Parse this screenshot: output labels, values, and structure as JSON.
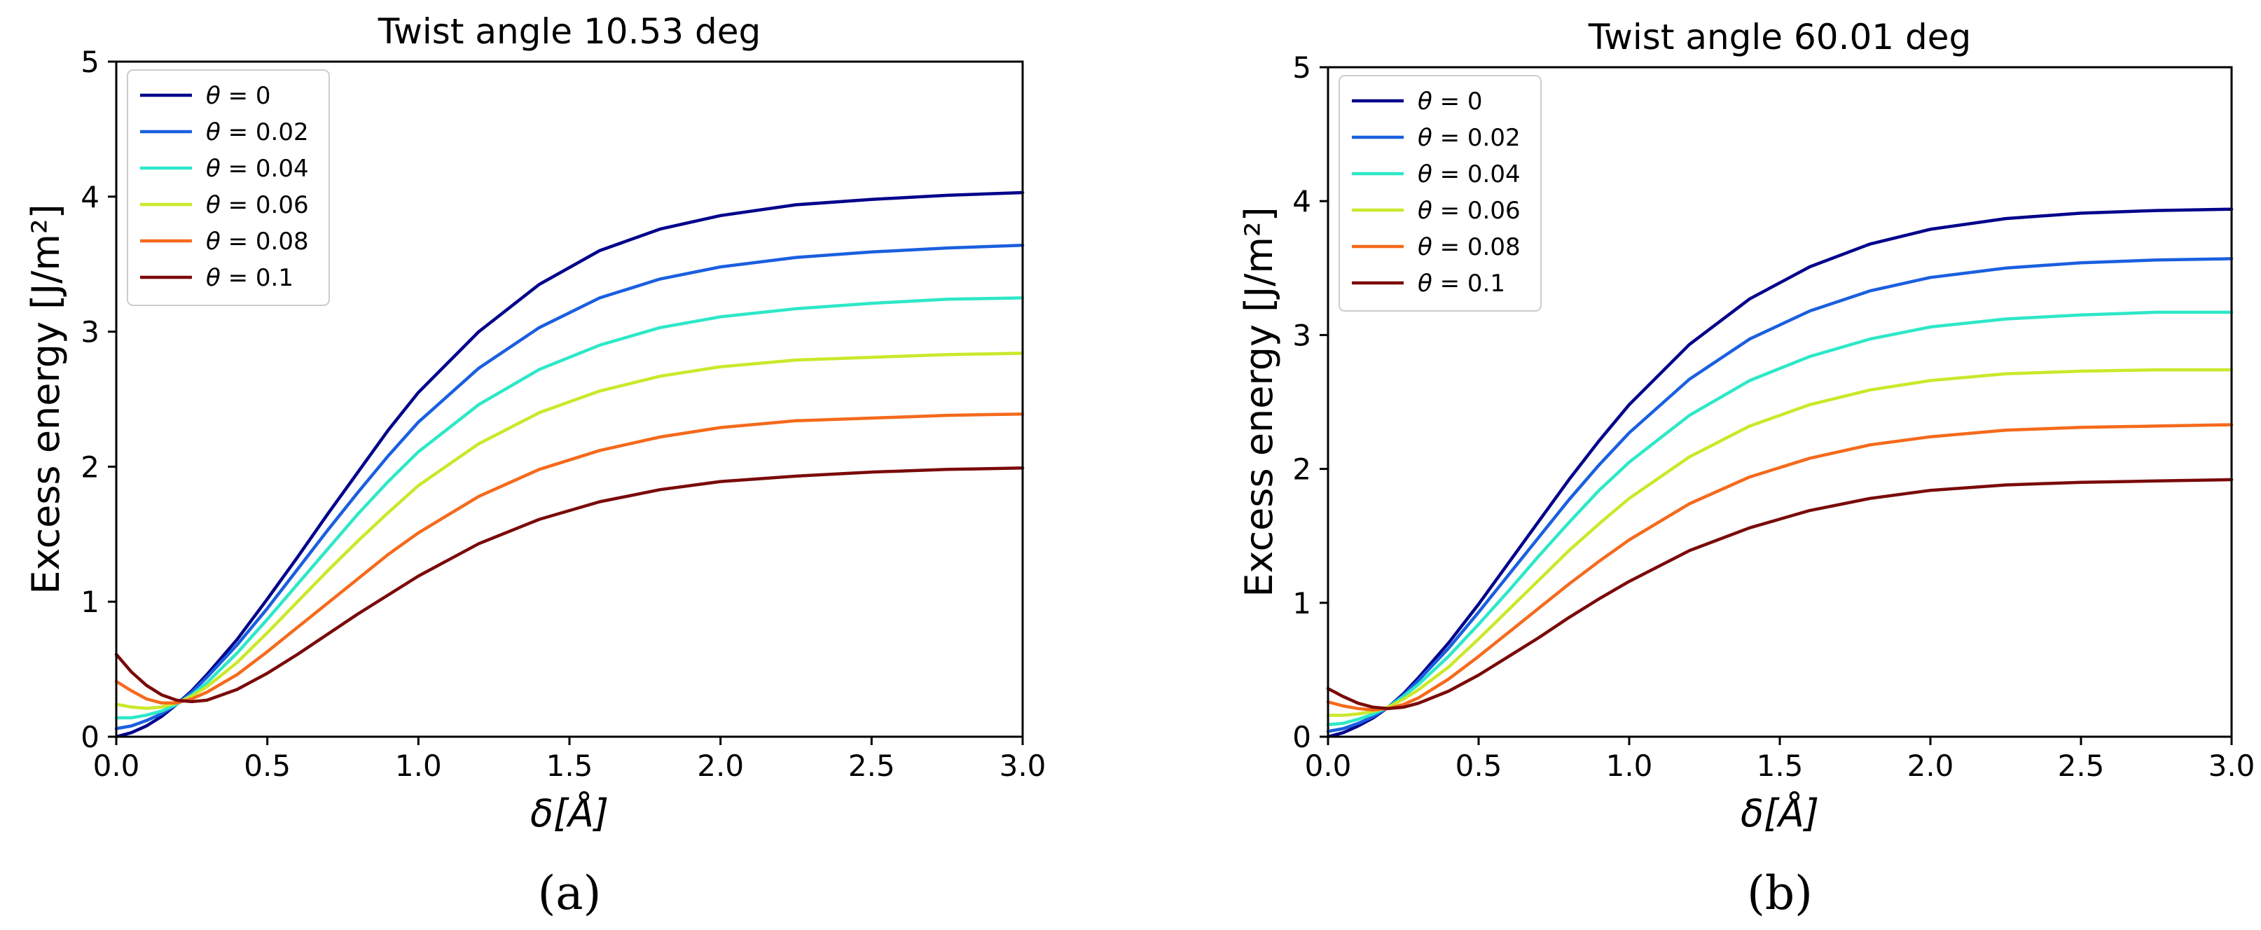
{
  "chart_data": [
    {
      "type": "line",
      "title": "Twist angle 10.53 deg",
      "xlabel": "δ[Å]",
      "ylabel": "Excess energy [J/m²]",
      "xlim": [
        0,
        3
      ],
      "ylim": [
        0,
        5
      ],
      "xticks": [
        "0.0",
        "0.5",
        "1.0",
        "1.5",
        "2.0",
        "2.5",
        "3.0"
      ],
      "yticks": [
        "0",
        "1",
        "2",
        "3",
        "4",
        "5"
      ],
      "legend_position": "top-left",
      "caption": "(a)",
      "x": [
        0,
        0.05,
        0.1,
        0.15,
        0.2,
        0.25,
        0.3,
        0.4,
        0.5,
        0.6,
        0.7,
        0.8,
        0.9,
        1.0,
        1.2,
        1.4,
        1.6,
        1.8,
        2.0,
        2.25,
        2.5,
        2.75,
        3.0
      ],
      "series": [
        {
          "name": "θ = 0",
          "color": "#00008b",
          "values": [
            0.0,
            0.03,
            0.08,
            0.15,
            0.24,
            0.34,
            0.46,
            0.72,
            1.02,
            1.33,
            1.65,
            1.96,
            2.27,
            2.55,
            3.0,
            3.35,
            3.6,
            3.76,
            3.86,
            3.94,
            3.98,
            4.01,
            4.03
          ]
        },
        {
          "name": "θ = 0.02",
          "color": "#1a5fe0",
          "values": [
            0.06,
            0.08,
            0.12,
            0.17,
            0.24,
            0.33,
            0.44,
            0.68,
            0.95,
            1.24,
            1.53,
            1.81,
            2.08,
            2.33,
            2.73,
            3.03,
            3.25,
            3.39,
            3.48,
            3.55,
            3.59,
            3.62,
            3.64
          ]
        },
        {
          "name": "θ = 0.04",
          "color": "#2de8c8",
          "values": [
            0.14,
            0.14,
            0.16,
            0.19,
            0.24,
            0.31,
            0.4,
            0.62,
            0.87,
            1.13,
            1.39,
            1.65,
            1.89,
            2.11,
            2.46,
            2.72,
            2.9,
            3.03,
            3.11,
            3.17,
            3.21,
            3.24,
            3.25
          ]
        },
        {
          "name": "θ = 0.06",
          "color": "#cbe82a",
          "values": [
            0.24,
            0.22,
            0.21,
            0.22,
            0.25,
            0.3,
            0.37,
            0.55,
            0.77,
            1.0,
            1.23,
            1.45,
            1.66,
            1.86,
            2.17,
            2.4,
            2.56,
            2.67,
            2.74,
            2.79,
            2.81,
            2.83,
            2.84
          ]
        },
        {
          "name": "θ = 0.08",
          "color": "#f56a1c",
          "values": [
            0.41,
            0.34,
            0.28,
            0.25,
            0.25,
            0.28,
            0.33,
            0.46,
            0.63,
            0.81,
            0.99,
            1.17,
            1.35,
            1.51,
            1.78,
            1.98,
            2.12,
            2.22,
            2.29,
            2.34,
            2.36,
            2.38,
            2.39
          ]
        },
        {
          "name": "θ = 0.1",
          "color": "#7a0a0a",
          "values": [
            0.61,
            0.48,
            0.38,
            0.31,
            0.27,
            0.26,
            0.27,
            0.35,
            0.47,
            0.61,
            0.76,
            0.91,
            1.05,
            1.19,
            1.43,
            1.61,
            1.74,
            1.83,
            1.89,
            1.93,
            1.96,
            1.98,
            1.99
          ]
        }
      ]
    },
    {
      "type": "line",
      "title": "Twist angle 60.01 deg",
      "xlabel": "δ[Å]",
      "ylabel": "Excess energy [J/m²]",
      "xlim": [
        0,
        3
      ],
      "ylim": [
        0,
        5
      ],
      "xticks": [
        "0.0",
        "0.5",
        "1.0",
        "1.5",
        "2.0",
        "2.5",
        "3.0"
      ],
      "yticks": [
        "0",
        "1",
        "2",
        "3",
        "4",
        "5"
      ],
      "legend_position": "top-left",
      "caption": "(b)",
      "x": [
        0,
        0.05,
        0.1,
        0.15,
        0.2,
        0.25,
        0.3,
        0.4,
        0.5,
        0.6,
        0.7,
        0.8,
        0.9,
        1.0,
        1.2,
        1.4,
        1.6,
        1.8,
        2.0,
        2.25,
        2.5,
        2.75,
        3.0
      ],
      "series": [
        {
          "name": "θ = 0",
          "color": "#00008b",
          "values": [
            0.0,
            0.03,
            0.08,
            0.14,
            0.22,
            0.32,
            0.44,
            0.7,
            0.99,
            1.3,
            1.61,
            1.92,
            2.21,
            2.48,
            2.93,
            3.27,
            3.51,
            3.68,
            3.79,
            3.87,
            3.91,
            3.93,
            3.94
          ]
        },
        {
          "name": "θ = 0.02",
          "color": "#1a5fe0",
          "values": [
            0.04,
            0.06,
            0.1,
            0.15,
            0.22,
            0.31,
            0.42,
            0.66,
            0.93,
            1.21,
            1.49,
            1.77,
            2.03,
            2.27,
            2.67,
            2.97,
            3.18,
            3.33,
            3.43,
            3.5,
            3.54,
            3.56,
            3.57
          ]
        },
        {
          "name": "θ = 0.04",
          "color": "#2de8c8",
          "values": [
            0.09,
            0.1,
            0.13,
            0.17,
            0.22,
            0.3,
            0.39,
            0.6,
            0.84,
            1.09,
            1.35,
            1.6,
            1.84,
            2.05,
            2.4,
            2.66,
            2.84,
            2.97,
            3.06,
            3.12,
            3.15,
            3.17,
            3.17
          ]
        },
        {
          "name": "θ = 0.06",
          "color": "#cbe82a",
          "values": [
            0.16,
            0.16,
            0.17,
            0.19,
            0.22,
            0.28,
            0.35,
            0.52,
            0.73,
            0.95,
            1.17,
            1.39,
            1.59,
            1.78,
            2.09,
            2.32,
            2.48,
            2.59,
            2.66,
            2.71,
            2.73,
            2.74,
            2.74
          ]
        },
        {
          "name": "θ = 0.08",
          "color": "#f56a1c",
          "values": [
            0.26,
            0.23,
            0.21,
            0.2,
            0.21,
            0.24,
            0.29,
            0.43,
            0.6,
            0.78,
            0.96,
            1.14,
            1.31,
            1.47,
            1.74,
            1.94,
            2.08,
            2.18,
            2.24,
            2.29,
            2.31,
            2.32,
            2.33
          ]
        },
        {
          "name": "θ = 0.1",
          "color": "#7a0a0a",
          "values": [
            0.36,
            0.3,
            0.25,
            0.22,
            0.21,
            0.22,
            0.25,
            0.34,
            0.46,
            0.6,
            0.74,
            0.89,
            1.03,
            1.16,
            1.39,
            1.56,
            1.69,
            1.78,
            1.84,
            1.88,
            1.9,
            1.91,
            1.92
          ]
        }
      ]
    }
  ]
}
